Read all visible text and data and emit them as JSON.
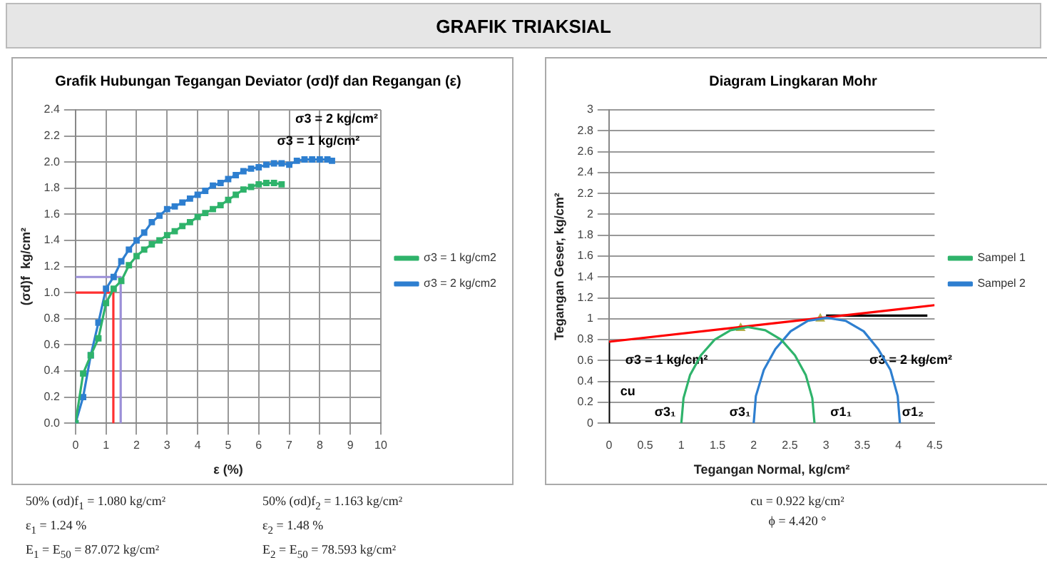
{
  "chart_data": [
    {
      "type": "line",
      "title": "Grafik Hubungan Tegangan Deviator (σd)f dan Regangan (ε)",
      "xlabel": "ε (%)",
      "ylabel": "(σd)f  kg/cm²",
      "xlim": [
        0,
        10
      ],
      "xticks": [
        0,
        1,
        2,
        3,
        4,
        5,
        6,
        7,
        8,
        9,
        10
      ],
      "ylim": [
        0,
        2.4
      ],
      "yticks": [
        {
          "value": 0,
          "label": "0.0"
        },
        {
          "value": 0.2,
          "label": "0.2"
        },
        {
          "value": 0.4,
          "label": "0.4"
        },
        {
          "value": 0.6,
          "label": "0.6"
        },
        {
          "value": 0.8,
          "label": "0.8"
        },
        {
          "value": 1,
          "label": "1.0"
        },
        {
          "value": 1.2,
          "label": "1.2"
        },
        {
          "value": 1.4,
          "label": "1.4"
        },
        {
          "value": 1.6,
          "label": "1.6"
        },
        {
          "value": 1.8,
          "label": "1.8"
        },
        {
          "value": 2,
          "label": "2.0"
        },
        {
          "value": 2.2,
          "label": "2.2"
        },
        {
          "value": 2.4,
          "label": "2.4"
        }
      ],
      "grid": true,
      "legend": "right",
      "marker": "square",
      "series": [
        {
          "name": "σ3 = 1 kg/cm2",
          "color": "#2fb36b",
          "x": [
            0,
            0.25,
            0.5,
            0.75,
            1,
            1.25,
            1.5,
            1.75,
            2,
            2.25,
            2.5,
            2.75,
            3,
            3.25,
            3.5,
            3.75,
            4,
            4.25,
            4.5,
            4.75,
            5,
            5.25,
            5.5,
            5.75,
            6,
            6.25,
            6.5,
            6.75
          ],
          "values": [
            0,
            0.38,
            0.52,
            0.65,
            0.92,
            1.03,
            1.09,
            1.21,
            1.28,
            1.33,
            1.37,
            1.4,
            1.44,
            1.47,
            1.51,
            1.54,
            1.58,
            1.61,
            1.64,
            1.67,
            1.71,
            1.75,
            1.79,
            1.81,
            1.83,
            1.84,
            1.84,
            1.83
          ]
        },
        {
          "name": "σ3 = 2 kg/cm2",
          "color": "#2e7fd0",
          "x": [
            0,
            0.25,
            0.5,
            0.75,
            1,
            1.25,
            1.5,
            1.75,
            2,
            2.25,
            2.5,
            2.75,
            3,
            3.25,
            3.5,
            3.75,
            4,
            4.25,
            4.5,
            4.75,
            5,
            5.25,
            5.5,
            5.75,
            6,
            6.25,
            6.5,
            6.75,
            7,
            7.25,
            7.5,
            7.75,
            8,
            8.25,
            8.4
          ],
          "values": [
            0,
            0.2,
            0.52,
            0.77,
            1.03,
            1.12,
            1.24,
            1.33,
            1.4,
            1.46,
            1.54,
            1.59,
            1.64,
            1.66,
            1.69,
            1.72,
            1.75,
            1.78,
            1.82,
            1.84,
            1.87,
            1.9,
            1.93,
            1.95,
            1.96,
            1.98,
            1.99,
            1.99,
            1.98,
            2.01,
            2.02,
            2.02,
            2.02,
            2.02,
            2.01
          ]
        },
        {
          "color": "#ff3030",
          "marker": "none",
          "x": [
            0,
            1.24,
            1.24
          ],
          "values": [
            1,
            1,
            0
          ]
        },
        {
          "color": "#9b8fd8",
          "marker": "none",
          "x": [
            0,
            1.48,
            1.48
          ],
          "values": [
            1.12,
            1.12,
            0
          ]
        }
      ],
      "annotations": [
        "GRAFIK TRIAKSIAL",
        "σ3 = 2 kg/cm²",
        "σ3 = 1 kg/cm²",
        "50% (σd)f$_{1}$ = 1.080 kg/cm²",
        "50% (σd)f$_{2}$ = 1.163 kg/cm²",
        "ε$_{1}$ = 1.24 %",
        "ε$_{2}$ = 1.48 %",
        "E$_{1}$ = E$_{50}$ = 87.072 kg/cm²",
        "E$_{2}$ = E$_{50}$ = 78.593 kg/cm²"
      ]
    },
    {
      "type": "line",
      "title": "Diagram Lingkaran Mohr",
      "xlabel": "Tegangan Normal, kg/cm²",
      "ylabel": "Tegangan Geser, kg/cm²",
      "xlim": [
        0,
        4.5
      ],
      "xticks": [
        0,
        0.5,
        1,
        1.5,
        2,
        2.5,
        3,
        3.5,
        4,
        4.5
      ],
      "ylim": [
        0,
        3
      ],
      "yticks": [
        0,
        0.2,
        0.4,
        0.6,
        0.8,
        1,
        1.2,
        1.4,
        1.6,
        1.8,
        2,
        2.2,
        2.4,
        2.6,
        2.8,
        3
      ],
      "grid": "y",
      "legend": "right",
      "marker": "none",
      "series": [
        {
          "name": "Sampel 1",
          "color": "#2fb36b",
          "x": [
            1,
            1.03,
            1.12,
            1.27,
            1.46,
            1.68,
            1.92,
            2.16,
            2.38,
            2.57,
            2.72,
            2.81,
            2.84
          ],
          "values": [
            0,
            0.24,
            0.46,
            0.65,
            0.8,
            0.89,
            0.92,
            0.89,
            0.8,
            0.65,
            0.46,
            0.24,
            0
          ]
        },
        {
          "name": "Sampel 2",
          "color": "#2e7fd0",
          "x": [
            2,
            2.03,
            2.14,
            2.3,
            2.51,
            2.75,
            3.01,
            3.27,
            3.52,
            3.72,
            3.89,
            3.99,
            4.02
          ],
          "values": [
            0,
            0.26,
            0.51,
            0.71,
            0.88,
            0.98,
            1.01,
            0.98,
            0.88,
            0.71,
            0.51,
            0.26,
            0
          ]
        },
        {
          "color": "#ff0000",
          "x": [
            0,
            4.5
          ],
          "values": [
            0.78,
            1.13
          ]
        },
        {
          "color": "#000000",
          "x": [
            3,
            4.4
          ],
          "values": [
            1.03,
            1.03
          ]
        },
        {
          "color": "#000000",
          "x": [
            0,
            0
          ],
          "values": [
            0,
            0.78
          ]
        },
        {
          "type": "scatter",
          "color": "#b5b04a",
          "marker": "triangle",
          "x": [
            1.82,
            2.92
          ],
          "values": [
            0.91,
            1
          ]
        }
      ],
      "annotations": [
        "σ3 = 1 kg/cm²",
        "σ3 = 2 kg/cm²",
        "cu",
        "σ3₁",
        "σ3₁",
        "σ1₁",
        "σ1₂",
        "cu = 0.922 kg/cm²",
        "ϕ = 4.420 °"
      ]
    }
  ]
}
